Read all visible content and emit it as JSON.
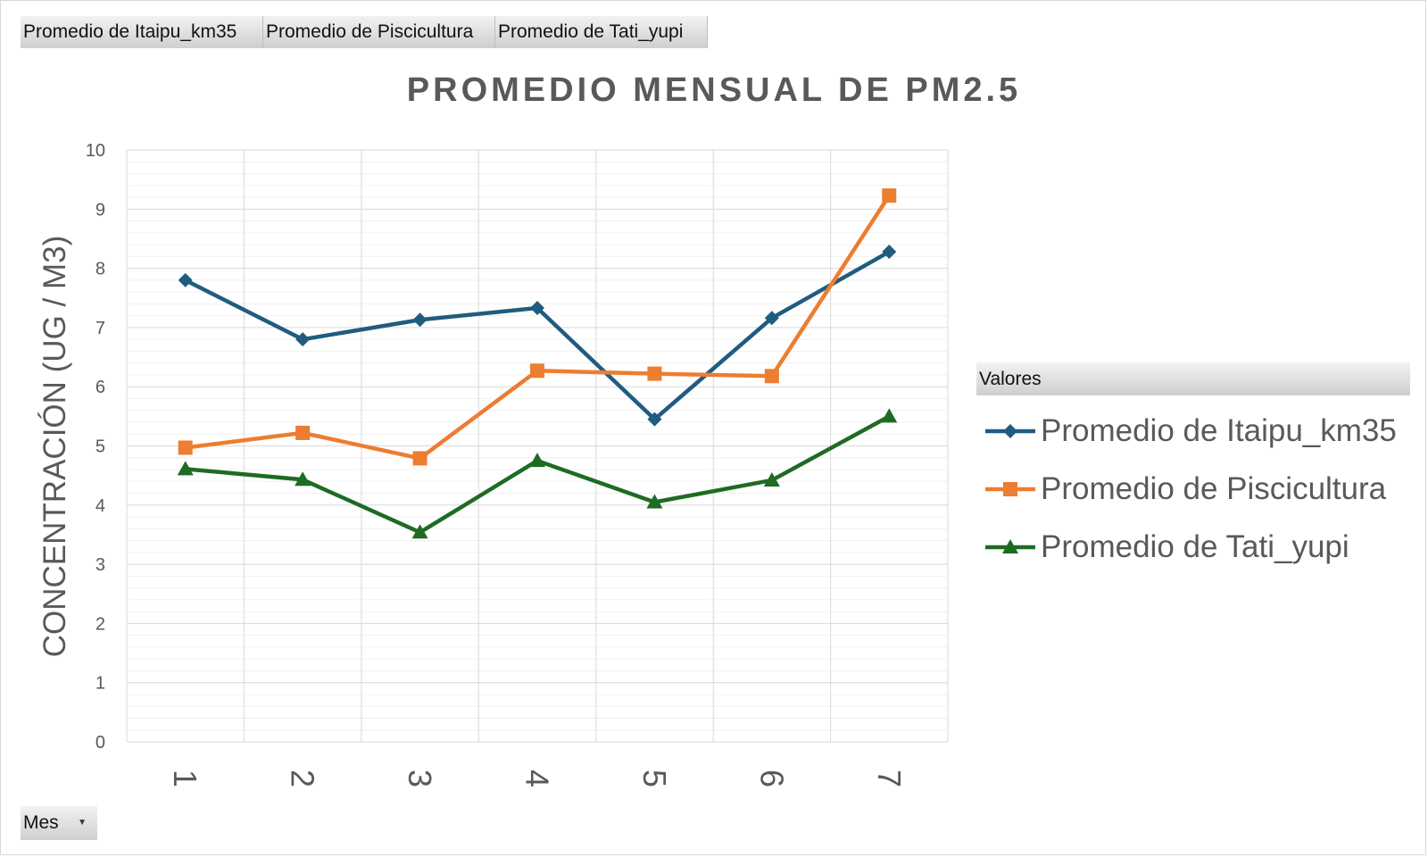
{
  "field_buttons": [
    "Promedio de Itaipu_km35",
    "Promedio de Piscicultura",
    "Promedio de Tati_yupi"
  ],
  "chart_data": {
    "type": "line",
    "title": "PROMEDIO MENSUAL DE PM2.5",
    "xlabel": "",
    "ylabel": "CONCENTRACIÓN (UG / M3)",
    "categories": [
      "1",
      "2",
      "3",
      "4",
      "5",
      "6",
      "7"
    ],
    "ylim": [
      0,
      10
    ],
    "yticks": [
      0,
      1,
      2,
      3,
      4,
      5,
      6,
      7,
      8,
      9,
      10
    ],
    "grid": true,
    "legend_title": "Valores",
    "legend_position": "right",
    "series": [
      {
        "name": "Promedio de Itaipu_km35",
        "color": "#1f5c80",
        "marker": "diamond",
        "values": [
          7.8,
          6.8,
          7.13,
          7.33,
          5.45,
          7.16,
          8.28
        ]
      },
      {
        "name": "Promedio de Piscicultura",
        "color": "#ed7d31",
        "marker": "square",
        "values": [
          4.97,
          5.22,
          4.79,
          6.27,
          6.22,
          6.18,
          9.23
        ]
      },
      {
        "name": "Promedio de Tati_yupi",
        "color": "#1e6b24",
        "marker": "triangle",
        "values": [
          4.61,
          4.43,
          3.54,
          4.75,
          4.05,
          4.42,
          5.5
        ]
      }
    ]
  },
  "filter_button": {
    "label": "Mes"
  }
}
